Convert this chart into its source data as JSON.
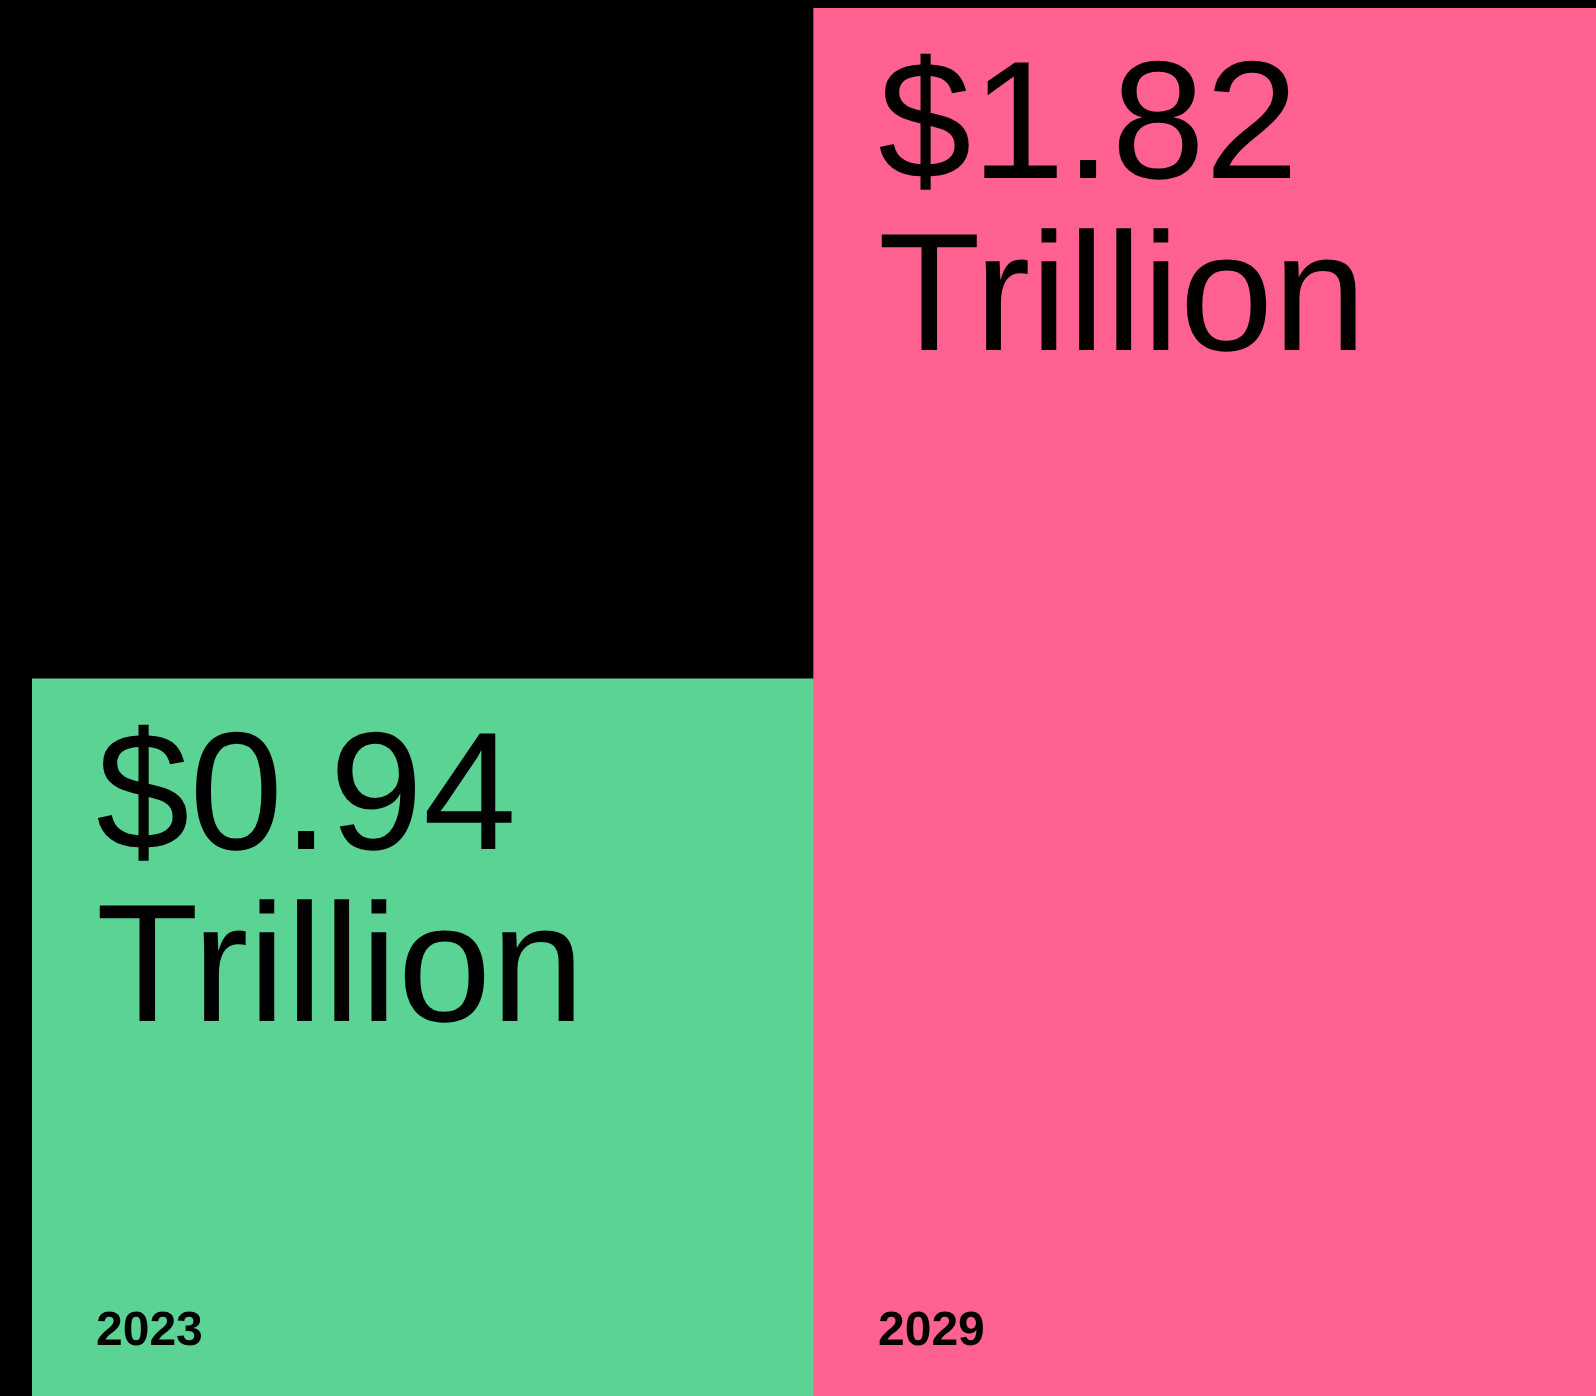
{
  "chart_data": {
    "type": "bar",
    "categories": [
      "2023",
      "2029"
    ],
    "values": [
      0.94,
      1.82
    ],
    "colors": [
      "#5ad394",
      "#ff6290"
    ],
    "value_labels": [
      "$0.94 Trillion",
      "$1.82 Trillion"
    ],
    "legend": false
  }
}
